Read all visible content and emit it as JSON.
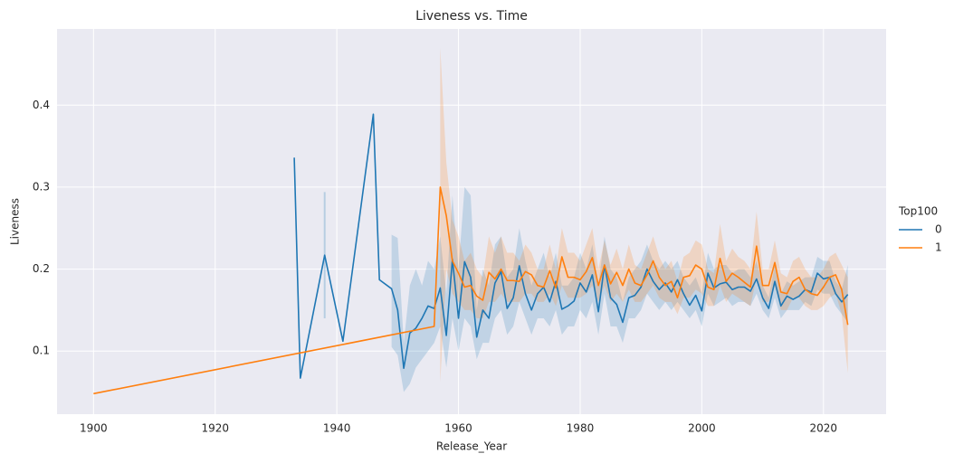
{
  "chart_data": {
    "type": "line",
    "title": "Liveness vs. Time",
    "x_label": "Release_Year",
    "y_label": "Liveness",
    "xlim": [
      1894,
      2030.3
    ],
    "ylim": [
      0.023,
      0.493
    ],
    "xticks": [
      1900,
      1920,
      1940,
      1960,
      1980,
      2000,
      2020
    ],
    "yticks": [
      0.1,
      0.2,
      0.3,
      0.4
    ],
    "grid": true,
    "legend": "outside right",
    "legend_title": "Top100",
    "series": [
      {
        "name": "0",
        "color": "#1f77b4",
        "x": [
          1933,
          1934,
          1938,
          1941,
          1946,
          1947,
          1949,
          1950,
          1951,
          1952,
          1953,
          1954,
          1955,
          1956,
          1957,
          1958,
          1959,
          1960,
          1961,
          1962,
          1963,
          1964,
          1965,
          1966,
          1967,
          1968,
          1969,
          1970,
          1971,
          1972,
          1973,
          1974,
          1975,
          1976,
          1977,
          1978,
          1979,
          1980,
          1981,
          1982,
          1983,
          1984,
          1985,
          1986,
          1987,
          1988,
          1989,
          1990,
          1991,
          1992,
          1993,
          1994,
          1995,
          1996,
          1997,
          1998,
          1999,
          2000,
          2001,
          2002,
          2003,
          2004,
          2005,
          2006,
          2007,
          2008,
          2009,
          2010,
          2011,
          2012,
          2013,
          2014,
          2015,
          2016,
          2017,
          2018,
          2019,
          2020,
          2021,
          2022,
          2023,
          2024
        ],
        "values": [
          0.336,
          0.067,
          0.217,
          0.112,
          0.389,
          0.187,
          0.176,
          0.15,
          0.079,
          0.122,
          0.128,
          0.14,
          0.155,
          0.152,
          0.177,
          0.119,
          0.212,
          0.14,
          0.209,
          0.19,
          0.117,
          0.15,
          0.14,
          0.183,
          0.197,
          0.152,
          0.165,
          0.204,
          0.17,
          0.15,
          0.17,
          0.178,
          0.16,
          0.185,
          0.151,
          0.155,
          0.161,
          0.183,
          0.172,
          0.193,
          0.148,
          0.205,
          0.165,
          0.157,
          0.135,
          0.165,
          0.168,
          0.178,
          0.2,
          0.185,
          0.175,
          0.183,
          0.172,
          0.187,
          0.17,
          0.156,
          0.168,
          0.149,
          0.195,
          0.177,
          0.182,
          0.184,
          0.175,
          0.178,
          0.178,
          0.173,
          0.188,
          0.165,
          0.152,
          0.185,
          0.155,
          0.167,
          0.163,
          0.167,
          0.175,
          0.172,
          0.195,
          0.188,
          0.19,
          0.17,
          0.16,
          0.169
        ],
        "ci_lower": [
          null,
          null,
          0.14,
          null,
          null,
          null,
          0.105,
          0.095,
          0.05,
          0.06,
          0.08,
          0.09,
          0.1,
          0.11,
          0.13,
          0.08,
          0.14,
          0.1,
          0.14,
          0.13,
          0.09,
          0.11,
          0.11,
          0.14,
          0.15,
          0.12,
          0.13,
          0.16,
          0.14,
          0.12,
          0.14,
          0.14,
          0.13,
          0.15,
          0.12,
          0.13,
          0.13,
          0.15,
          0.14,
          0.16,
          0.12,
          0.17,
          0.13,
          0.13,
          0.11,
          0.14,
          0.14,
          0.15,
          0.17,
          0.16,
          0.15,
          0.16,
          0.15,
          0.16,
          0.15,
          0.14,
          0.15,
          0.13,
          0.17,
          0.155,
          0.16,
          0.165,
          0.155,
          0.16,
          0.16,
          0.155,
          0.17,
          0.15,
          0.14,
          0.165,
          0.14,
          0.15,
          0.15,
          0.15,
          0.16,
          0.155,
          0.175,
          0.17,
          0.17,
          0.155,
          0.145,
          0.135
        ],
        "ci_upper": [
          null,
          null,
          0.294,
          null,
          null,
          null,
          0.242,
          0.238,
          0.11,
          0.18,
          0.2,
          0.18,
          0.21,
          0.2,
          0.24,
          0.17,
          0.29,
          0.2,
          0.3,
          0.29,
          0.15,
          0.2,
          0.18,
          0.23,
          0.24,
          0.19,
          0.2,
          0.25,
          0.21,
          0.18,
          0.2,
          0.22,
          0.19,
          0.22,
          0.18,
          0.18,
          0.19,
          0.22,
          0.2,
          0.23,
          0.18,
          0.24,
          0.2,
          0.19,
          0.16,
          0.19,
          0.2,
          0.21,
          0.23,
          0.21,
          0.2,
          0.21,
          0.2,
          0.21,
          0.19,
          0.18,
          0.19,
          0.17,
          0.22,
          0.2,
          0.205,
          0.205,
          0.195,
          0.2,
          0.2,
          0.19,
          0.21,
          0.18,
          0.165,
          0.205,
          0.17,
          0.185,
          0.18,
          0.185,
          0.19,
          0.19,
          0.215,
          0.21,
          0.21,
          0.185,
          0.175,
          0.205
        ]
      },
      {
        "name": "1",
        "color": "#ff7f0e",
        "x": [
          1900,
          1956,
          1957,
          1958,
          1959,
          1960,
          1961,
          1962,
          1963,
          1964,
          1965,
          1966,
          1967,
          1968,
          1969,
          1970,
          1971,
          1972,
          1973,
          1974,
          1975,
          1976,
          1977,
          1978,
          1979,
          1980,
          1981,
          1982,
          1983,
          1984,
          1985,
          1986,
          1987,
          1988,
          1989,
          1990,
          1991,
          1992,
          1993,
          1994,
          1995,
          1996,
          1997,
          1998,
          1999,
          2000,
          2001,
          2002,
          2003,
          2004,
          2005,
          2006,
          2007,
          2008,
          2009,
          2010,
          2011,
          2012,
          2013,
          2014,
          2015,
          2016,
          2017,
          2018,
          2019,
          2020,
          2021,
          2022,
          2023,
          2024
        ],
        "values": [
          0.048,
          0.13,
          0.3,
          0.265,
          0.21,
          0.195,
          0.178,
          0.18,
          0.167,
          0.162,
          0.196,
          0.188,
          0.2,
          0.186,
          0.186,
          0.185,
          0.197,
          0.193,
          0.18,
          0.178,
          0.198,
          0.177,
          0.215,
          0.19,
          0.19,
          0.187,
          0.197,
          0.214,
          0.18,
          0.205,
          0.182,
          0.196,
          0.18,
          0.2,
          0.183,
          0.18,
          0.193,
          0.21,
          0.19,
          0.18,
          0.185,
          0.165,
          0.19,
          0.192,
          0.205,
          0.2,
          0.178,
          0.175,
          0.213,
          0.185,
          0.195,
          0.19,
          0.184,
          0.178,
          0.228,
          0.18,
          0.18,
          0.208,
          0.172,
          0.17,
          0.185,
          0.19,
          0.175,
          0.17,
          0.168,
          0.178,
          0.19,
          0.193,
          0.175,
          0.132
        ],
        "ci_lower": [
          null,
          null,
          0.062,
          0.2,
          0.17,
          0.16,
          0.15,
          0.15,
          0.14,
          0.14,
          0.16,
          0.16,
          0.17,
          0.16,
          0.16,
          0.16,
          0.17,
          0.17,
          0.16,
          0.16,
          0.17,
          0.155,
          0.18,
          0.165,
          0.165,
          0.165,
          0.17,
          0.18,
          0.16,
          0.18,
          0.16,
          0.17,
          0.16,
          0.175,
          0.16,
          0.16,
          0.17,
          0.18,
          0.165,
          0.16,
          0.16,
          0.145,
          0.165,
          0.165,
          0.175,
          0.17,
          0.155,
          0.155,
          0.18,
          0.16,
          0.17,
          0.165,
          0.16,
          0.155,
          0.19,
          0.16,
          0.16,
          0.18,
          0.15,
          0.15,
          0.165,
          0.165,
          0.155,
          0.15,
          0.15,
          0.155,
          0.165,
          0.17,
          0.145,
          0.073
        ],
        "ci_upper": [
          null,
          null,
          0.47,
          0.33,
          0.26,
          0.24,
          0.21,
          0.22,
          0.2,
          0.19,
          0.24,
          0.22,
          0.24,
          0.22,
          0.22,
          0.21,
          0.23,
          0.22,
          0.2,
          0.2,
          0.23,
          0.2,
          0.25,
          0.22,
          0.22,
          0.21,
          0.23,
          0.25,
          0.2,
          0.235,
          0.205,
          0.225,
          0.2,
          0.23,
          0.205,
          0.2,
          0.22,
          0.24,
          0.215,
          0.2,
          0.21,
          0.185,
          0.215,
          0.22,
          0.235,
          0.23,
          0.2,
          0.195,
          0.255,
          0.21,
          0.225,
          0.215,
          0.21,
          0.2,
          0.27,
          0.2,
          0.2,
          0.235,
          0.195,
          0.19,
          0.21,
          0.215,
          0.2,
          0.19,
          0.19,
          0.2,
          0.215,
          0.22,
          0.205,
          0.19
        ]
      }
    ]
  }
}
